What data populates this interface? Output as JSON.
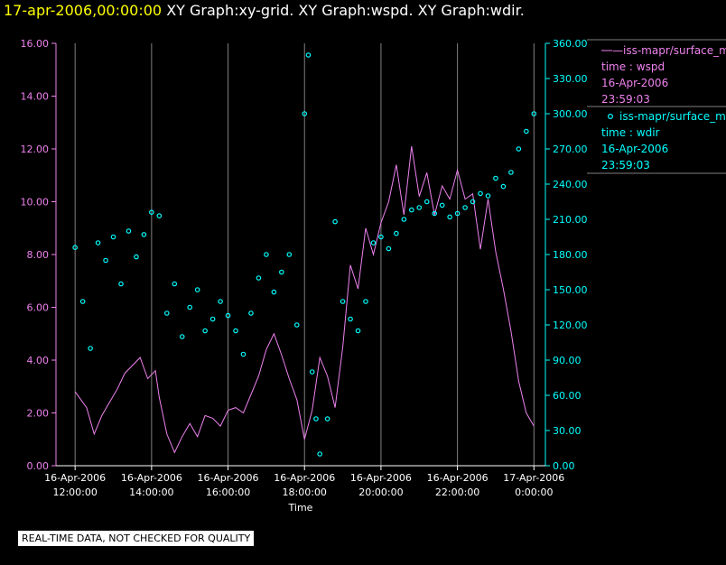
{
  "header": {
    "timestamp": "17-apr-2006,00:00:00",
    "title": "XY Graph:xy-grid.  XY Graph:wspd.  XY Graph:wdir."
  },
  "note": "REAL-TIME DATA, NOT CHECKED FOR QUALITY",
  "colors": {
    "wspd": "#ee82ee",
    "wdir": "#00ffff",
    "grid": "#808080",
    "text": "#ffffff"
  },
  "chart_data": {
    "type": "line",
    "title": "XY Graph:xy-grid.  XY Graph:wspd.  XY Graph:wdir.",
    "xlabel": "Time",
    "x_range_hours": [
      11.5,
      24.3
    ],
    "x_ticks": [
      {
        "hour": 12,
        "date": "16-Apr-2006",
        "time": "12:00:00"
      },
      {
        "hour": 14,
        "date": "16-Apr-2006",
        "time": "14:00:00"
      },
      {
        "hour": 16,
        "date": "16-Apr-2006",
        "time": "16:00:00"
      },
      {
        "hour": 18,
        "date": "16-Apr-2006",
        "time": "18:00:00"
      },
      {
        "hour": 20,
        "date": "16-Apr-2006",
        "time": "20:00:00"
      },
      {
        "hour": 22,
        "date": "16-Apr-2006",
        "time": "22:00:00"
      },
      {
        "hour": 24,
        "date": "17-Apr-2006",
        "time": "0:00:00"
      }
    ],
    "y_left": {
      "range": [
        0,
        16
      ],
      "ticks": [
        "0.00",
        "2.00",
        "4.00",
        "6.00",
        "8.00",
        "10.00",
        "12.00",
        "14.00",
        "16.00"
      ]
    },
    "y_right": {
      "range": [
        0,
        360
      ],
      "ticks": [
        "0.00",
        "30.00",
        "60.00",
        "90.00",
        "120.00",
        "150.00",
        "180.00",
        "210.00",
        "240.00",
        "270.00",
        "300.00",
        "330.00",
        "360.00"
      ]
    },
    "series": [
      {
        "name": "wspd",
        "axis": "left",
        "style": "line",
        "legend": [
          "—iss-mapr/surface_m",
          "time : wspd",
          "16-Apr-2006",
          "23:59:03"
        ],
        "points": [
          [
            12.0,
            2.8
          ],
          [
            12.3,
            2.2
          ],
          [
            12.5,
            1.2
          ],
          [
            12.7,
            1.9
          ],
          [
            12.9,
            2.4
          ],
          [
            13.1,
            2.9
          ],
          [
            13.3,
            3.5
          ],
          [
            13.5,
            3.8
          ],
          [
            13.7,
            4.1
          ],
          [
            13.9,
            3.3
          ],
          [
            14.1,
            3.6
          ],
          [
            14.2,
            2.6
          ],
          [
            14.4,
            1.2
          ],
          [
            14.6,
            0.5
          ],
          [
            14.8,
            1.1
          ],
          [
            15.0,
            1.6
          ],
          [
            15.2,
            1.1
          ],
          [
            15.4,
            1.9
          ],
          [
            15.6,
            1.8
          ],
          [
            15.8,
            1.5
          ],
          [
            16.0,
            2.1
          ],
          [
            16.2,
            2.2
          ],
          [
            16.4,
            2.0
          ],
          [
            16.6,
            2.7
          ],
          [
            16.8,
            3.4
          ],
          [
            17.0,
            4.4
          ],
          [
            17.2,
            5.0
          ],
          [
            17.4,
            4.2
          ],
          [
            17.6,
            3.3
          ],
          [
            17.8,
            2.5
          ],
          [
            18.0,
            1.0
          ],
          [
            18.2,
            2.1
          ],
          [
            18.4,
            4.1
          ],
          [
            18.6,
            3.4
          ],
          [
            18.8,
            2.2
          ],
          [
            19.0,
            4.5
          ],
          [
            19.2,
            7.6
          ],
          [
            19.4,
            6.7
          ],
          [
            19.6,
            9.0
          ],
          [
            19.8,
            8.0
          ],
          [
            20.0,
            9.2
          ],
          [
            20.2,
            10.0
          ],
          [
            20.4,
            11.4
          ],
          [
            20.6,
            9.5
          ],
          [
            20.8,
            12.1
          ],
          [
            21.0,
            10.2
          ],
          [
            21.2,
            11.1
          ],
          [
            21.4,
            9.5
          ],
          [
            21.6,
            10.6
          ],
          [
            21.8,
            10.1
          ],
          [
            22.0,
            11.2
          ],
          [
            22.2,
            10.1
          ],
          [
            22.4,
            10.3
          ],
          [
            22.6,
            8.2
          ],
          [
            22.8,
            10.1
          ],
          [
            23.0,
            8.1
          ],
          [
            23.2,
            6.7
          ],
          [
            23.4,
            5.1
          ],
          [
            23.6,
            3.2
          ],
          [
            23.8,
            2.0
          ],
          [
            24.0,
            1.5
          ]
        ]
      },
      {
        "name": "wdir",
        "axis": "right",
        "style": "markers",
        "legend": [
          "iss-mapr/surface_m",
          "time : wdir",
          "16-Apr-2006",
          "23:59:03"
        ],
        "points": [
          [
            12.0,
            186
          ],
          [
            12.2,
            140
          ],
          [
            12.4,
            100
          ],
          [
            12.6,
            190
          ],
          [
            12.8,
            175
          ],
          [
            13.0,
            195
          ],
          [
            13.2,
            155
          ],
          [
            13.4,
            200
          ],
          [
            13.6,
            178
          ],
          [
            13.8,
            197
          ],
          [
            14.0,
            216
          ],
          [
            14.2,
            213
          ],
          [
            14.4,
            130
          ],
          [
            14.6,
            155
          ],
          [
            14.8,
            110
          ],
          [
            15.0,
            135
          ],
          [
            15.2,
            150
          ],
          [
            15.4,
            115
          ],
          [
            15.6,
            125
          ],
          [
            15.8,
            140
          ],
          [
            16.0,
            128
          ],
          [
            16.2,
            115
          ],
          [
            16.4,
            95
          ],
          [
            16.6,
            130
          ],
          [
            16.8,
            160
          ],
          [
            17.0,
            180
          ],
          [
            17.2,
            148
          ],
          [
            17.4,
            165
          ],
          [
            17.6,
            180
          ],
          [
            17.8,
            120
          ],
          [
            18.0,
            300
          ],
          [
            18.1,
            350
          ],
          [
            18.2,
            80
          ],
          [
            18.3,
            40
          ],
          [
            18.4,
            10
          ],
          [
            18.6,
            40
          ],
          [
            18.8,
            208
          ],
          [
            19.0,
            140
          ],
          [
            19.2,
            125
          ],
          [
            19.4,
            115
          ],
          [
            19.6,
            140
          ],
          [
            19.8,
            190
          ],
          [
            20.0,
            195
          ],
          [
            20.2,
            185
          ],
          [
            20.4,
            198
          ],
          [
            20.6,
            210
          ],
          [
            20.8,
            218
          ],
          [
            21.0,
            220
          ],
          [
            21.2,
            225
          ],
          [
            21.4,
            215
          ],
          [
            21.6,
            222
          ],
          [
            21.8,
            212
          ],
          [
            22.0,
            215
          ],
          [
            22.2,
            220
          ],
          [
            22.4,
            225
          ],
          [
            22.6,
            232
          ],
          [
            22.8,
            230
          ],
          [
            23.0,
            245
          ],
          [
            23.2,
            238
          ],
          [
            23.4,
            250
          ],
          [
            23.6,
            270
          ],
          [
            23.8,
            285
          ],
          [
            24.0,
            300
          ]
        ]
      }
    ],
    "legend_placement": "right",
    "grid": true
  }
}
